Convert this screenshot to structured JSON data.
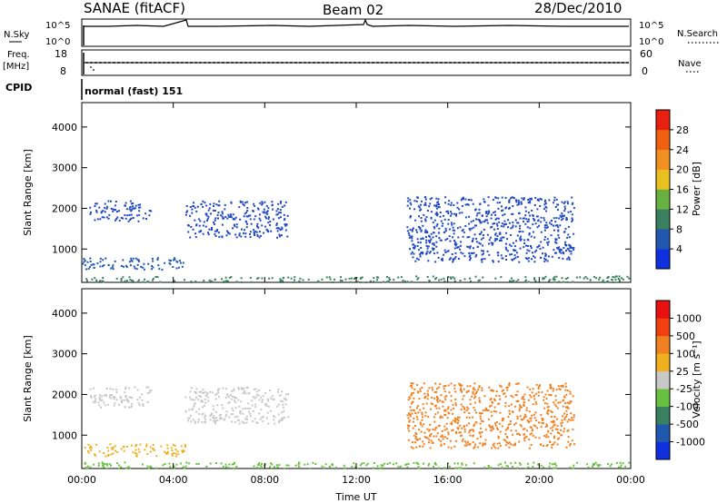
{
  "header": {
    "station": "SANAE (fitACF)",
    "beam": "Beam 02",
    "date": "28/Dec/2010"
  },
  "top_panels": {
    "nsky_label": "N.Sky",
    "nsky_ticks": [
      "10^5",
      "10^0"
    ],
    "nsearch_label": "N.Search",
    "nsearch_ticks": [
      "10^5",
      "10^0"
    ],
    "freq_label": "Freq.",
    "freq_unit": "[MHz]",
    "freq_ticks": [
      "18",
      "8"
    ],
    "nave_label": "Nave",
    "nave_ticks": [
      "60",
      "0"
    ],
    "cpid_label": "CPID",
    "cpid_value": "normal (fast) 151"
  },
  "chart_data": [
    {
      "type": "heatmap",
      "name": "power",
      "xlabel": "Time UT",
      "ylabel": "Slant Range [km]",
      "xlim": [
        0,
        24
      ],
      "ylim": [
        180,
        4600
      ],
      "x_ticks": [
        "00:00",
        "04:00",
        "08:00",
        "12:00",
        "16:00",
        "20:00",
        "00:00"
      ],
      "y_ticks": [
        1000,
        2000,
        3000,
        4000
      ],
      "colorbar_label": "Power [dB]",
      "colorbar_ticks": [
        4,
        8,
        12,
        16,
        20,
        24,
        28
      ],
      "colorbar_colors": [
        "#1030e0",
        "#2058b0",
        "#3a8060",
        "#68b040",
        "#e8c020",
        "#f09020",
        "#f06010",
        "#e82010"
      ],
      "regions": [
        {
          "t": [
            0.3,
            3.0
          ],
          "r": [
            1700,
            2200
          ],
          "color": "#2048c0"
        },
        {
          "t": [
            4.5,
            9.0
          ],
          "r": [
            1300,
            2200
          ],
          "color": "#2048c0"
        },
        {
          "t": [
            0.0,
            4.5
          ],
          "r": [
            500,
            800
          ],
          "color": "#2058b0"
        },
        {
          "t": [
            14.2,
            21.5
          ],
          "r": [
            700,
            2300
          ],
          "color": "#2048c0"
        },
        {
          "t": [
            0.0,
            24.0
          ],
          "r": [
            200,
            350
          ],
          "color": "#3a8060"
        }
      ]
    },
    {
      "type": "heatmap",
      "name": "velocity",
      "xlabel": "Time UT",
      "ylabel": "Slant Range [km]",
      "xlim": [
        0,
        24
      ],
      "ylim": [
        180,
        4600
      ],
      "x_ticks": [
        "00:00",
        "04:00",
        "08:00",
        "12:00",
        "16:00",
        "20:00",
        "00:00"
      ],
      "y_ticks": [
        1000,
        2000,
        3000,
        4000
      ],
      "colorbar_label": "Velocity [m s⁻¹]",
      "colorbar_ticks": [
        1000,
        500,
        100,
        25,
        -25,
        -100,
        -500,
        -1000
      ],
      "colorbar_colors": [
        "#1030e0",
        "#2058b0",
        "#3a8060",
        "#68c040",
        "#c8c8c8",
        "#f0b020",
        "#f08020",
        "#f04010",
        "#e81010"
      ],
      "regions": [
        {
          "t": [
            0.3,
            3.0
          ],
          "r": [
            1700,
            2200
          ],
          "color": "#c8c8c8"
        },
        {
          "t": [
            4.5,
            9.0
          ],
          "r": [
            1300,
            2200
          ],
          "color": "#c8c8c8"
        },
        {
          "t": [
            0.0,
            4.5
          ],
          "r": [
            500,
            800
          ],
          "color": "#f0b020"
        },
        {
          "t": [
            14.2,
            21.5
          ],
          "r": [
            700,
            2300
          ],
          "color": "#f08020"
        },
        {
          "t": [
            0.0,
            24.0
          ],
          "r": [
            200,
            350
          ],
          "color": "#68c040"
        }
      ]
    }
  ]
}
